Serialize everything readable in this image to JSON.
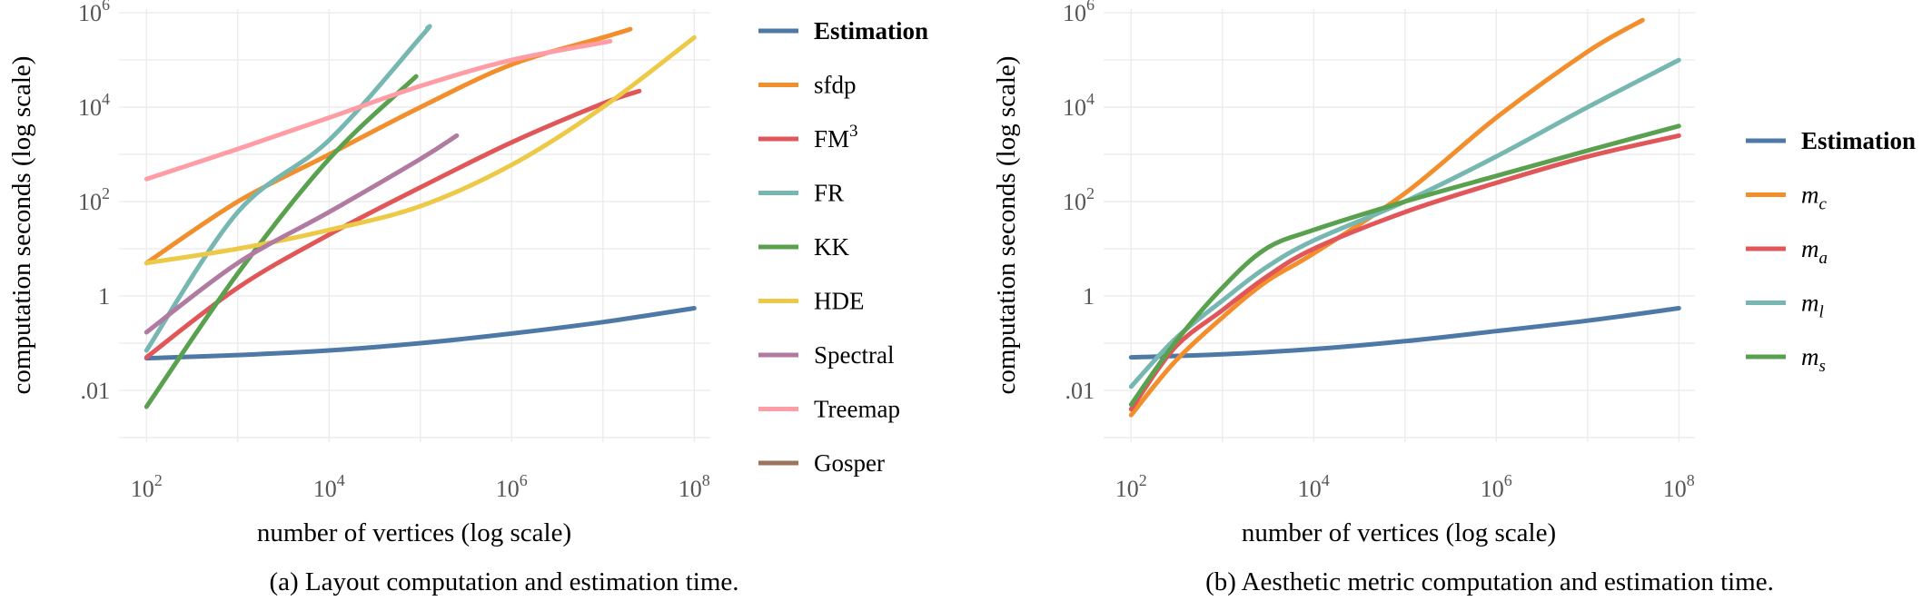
{
  "chart_data": [
    {
      "type": "line",
      "x_scale": "log",
      "y_scale": "log",
      "xlabel": "number of vertices (log scale)",
      "ylabel": "computation seconds (log scale)",
      "caption": "(a) Layout computation and estimation time.",
      "xlim": [
        50,
        150000000
      ],
      "ylim": [
        0.0008,
        1200000
      ],
      "x_ticks": [
        {
          "value": 100,
          "label": "10",
          "sup": "2"
        },
        {
          "value": 10000,
          "label": "10",
          "sup": "4"
        },
        {
          "value": 1000000,
          "label": "10",
          "sup": "6"
        },
        {
          "value": 100000000,
          "label": "10",
          "sup": "8"
        }
      ],
      "y_ticks": [
        {
          "value": 0.01,
          "label": ".01",
          "sup": ""
        },
        {
          "value": 1,
          "label": "1",
          "sup": ""
        },
        {
          "value": 100,
          "label": "10",
          "sup": "2"
        },
        {
          "value": 10000,
          "label": "10",
          "sup": "4"
        },
        {
          "value": 1000000,
          "label": "10",
          "sup": "6"
        }
      ],
      "grid": true,
      "legend_position": "right",
      "series": [
        {
          "name": "Estimation",
          "color": "#4e79a7",
          "style": "bold",
          "x": [
            100,
            1000,
            10000,
            100000,
            1000000,
            10000000,
            100000000
          ],
          "y": [
            0.048,
            0.056,
            0.07,
            0.1,
            0.16,
            0.28,
            0.55
          ]
        },
        {
          "name": "sfdp",
          "color": "#f28e2b",
          "x": [
            100,
            1000,
            10000,
            100000,
            1000000,
            10000000,
            20000000
          ],
          "y": [
            5,
            100,
            1000,
            10000,
            80000,
            300000,
            450000
          ]
        },
        {
          "name": "FM",
          "sup": "3",
          "color": "#e15759",
          "x": [
            100,
            1000,
            10000,
            100000,
            1000000,
            10000000,
            25000000
          ],
          "y": [
            0.05,
            1.5,
            20,
            200,
            1800,
            12000,
            22000
          ]
        },
        {
          "name": "FR",
          "color": "#76b7b2",
          "x": [
            100,
            1000,
            10000,
            100000,
            120000
          ],
          "y": [
            0.07,
            60,
            2000,
            300000,
            480000
          ]
        },
        {
          "name": "KK",
          "color": "#59a14f",
          "x": [
            100,
            1000,
            10000,
            90000
          ],
          "y": [
            0.0045,
            3,
            800,
            45000
          ]
        },
        {
          "name": "HDE",
          "color": "#edc948",
          "x": [
            100,
            1000,
            10000,
            100000,
            1000000,
            10000000,
            100000000
          ],
          "y": [
            5,
            10,
            25,
            80,
            600,
            10000,
            300000
          ]
        },
        {
          "name": "Spectral",
          "color": "#b07aa1",
          "x": [
            100,
            1000,
            10000,
            100000,
            250000
          ],
          "y": [
            0.17,
            5,
            60,
            800,
            2500
          ]
        },
        {
          "name": "Treemap",
          "color": "#ff9da7",
          "x": [
            100,
            1000,
            10000,
            100000,
            1000000,
            12000000
          ],
          "y": [
            300,
            1300,
            6000,
            28000,
            100000,
            250000
          ]
        },
        {
          "name": "Gosper",
          "color": "#9c755f",
          "x": [],
          "y": []
        }
      ]
    },
    {
      "type": "line",
      "x_scale": "log",
      "y_scale": "log",
      "xlabel": "number of vertices (log scale)",
      "ylabel": "computation seconds (log scale)",
      "caption": "(b) Aesthetic metric computation and estimation time.",
      "xlim": [
        50,
        150000000
      ],
      "ylim": [
        0.0008,
        1200000
      ],
      "x_ticks": [
        {
          "value": 100,
          "label": "10",
          "sup": "2"
        },
        {
          "value": 10000,
          "label": "10",
          "sup": "4"
        },
        {
          "value": 1000000,
          "label": "10",
          "sup": "6"
        },
        {
          "value": 100000000,
          "label": "10",
          "sup": "8"
        }
      ],
      "y_ticks": [
        {
          "value": 0.01,
          "label": ".01",
          "sup": ""
        },
        {
          "value": 1,
          "label": "1",
          "sup": ""
        },
        {
          "value": 100,
          "label": "10",
          "sup": "2"
        },
        {
          "value": 10000,
          "label": "10",
          "sup": "4"
        },
        {
          "value": 1000000,
          "label": "10",
          "sup": "6"
        }
      ],
      "grid": true,
      "legend_position": "right",
      "series": [
        {
          "name": "Estimation",
          "color": "#4e79a7",
          "style": "bold",
          "x": [
            100,
            1000,
            10000,
            100000,
            1000000,
            10000000,
            100000000
          ],
          "y": [
            0.05,
            0.058,
            0.075,
            0.11,
            0.18,
            0.3,
            0.55
          ]
        },
        {
          "name": "m",
          "sub": "c",
          "style": "italic",
          "color": "#f28e2b",
          "x": [
            100,
            300,
            1000,
            3000,
            10000,
            100000,
            1000000,
            10000000,
            40000000
          ],
          "y": [
            0.003,
            0.04,
            0.35,
            2,
            8,
            150,
            6000,
            150000,
            700000
          ]
        },
        {
          "name": "m",
          "sub": "a",
          "style": "italic",
          "color": "#e15759",
          "x": [
            100,
            300,
            1000,
            3000,
            10000,
            100000,
            1000000,
            10000000,
            100000000
          ],
          "y": [
            0.004,
            0.08,
            0.5,
            2.5,
            10,
            60,
            250,
            900,
            2500
          ]
        },
        {
          "name": "m",
          "sub": "l",
          "style": "italic",
          "color": "#76b7b2",
          "x": [
            100,
            300,
            1000,
            3000,
            10000,
            100000,
            1000000,
            10000000,
            100000000
          ],
          "y": [
            0.012,
            0.12,
            0.8,
            4,
            15,
            100,
            900,
            10000,
            100000
          ]
        },
        {
          "name": "m",
          "sub": "s",
          "style": "italic",
          "color": "#59a14f",
          "x": [
            100,
            300,
            1000,
            3000,
            10000,
            100000,
            1000000,
            10000000,
            100000000
          ],
          "y": [
            0.005,
            0.1,
            1.5,
            10,
            25,
            100,
            350,
            1200,
            4000
          ]
        }
      ]
    }
  ]
}
